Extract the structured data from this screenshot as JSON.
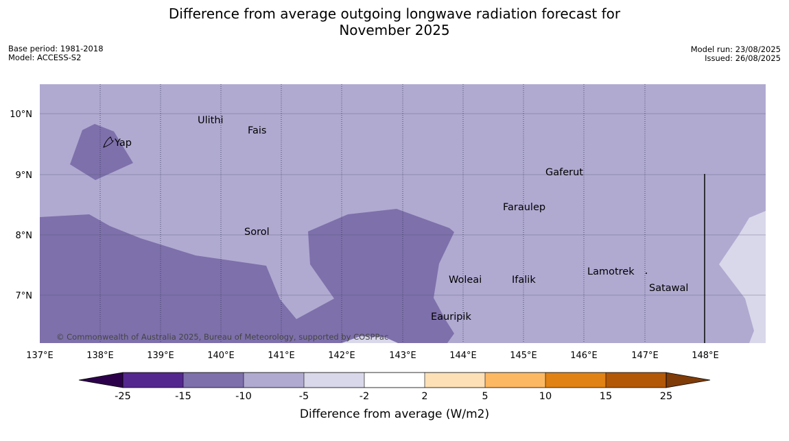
{
  "title_line1": "Difference from average outgoing longwave radiation forecast for",
  "title_line2": "November 2025",
  "meta_left": [
    "Base period: 1981-2018",
    "Model: ACCESS-S2"
  ],
  "meta_right": [
    "Model run: 23/08/2025",
    "Issued: 26/08/2025"
  ],
  "copyright": "© Commonwealth of Australia 2025, Bureau of Meteorology, supported by COSPPac",
  "lon_ticks": [
    "137°E",
    "138°E",
    "139°E",
    "140°E",
    "141°E",
    "142°E",
    "143°E",
    "144°E",
    "145°E",
    "146°E",
    "147°E",
    "148°E"
  ],
  "lat_ticks": [
    "10°N",
    "9°N",
    "8°N",
    "7°N"
  ],
  "places": [
    {
      "name": "Ulithi"
    },
    {
      "name": "Fais"
    },
    {
      "name": "Yap"
    },
    {
      "name": "Gaferut"
    },
    {
      "name": "Faraulep"
    },
    {
      "name": "Sorol"
    },
    {
      "name": "Lamotrek"
    },
    {
      "name": "Woleai"
    },
    {
      "name": "Ifalik"
    },
    {
      "name": "Satawal"
    },
    {
      "name": "Eauripik"
    }
  ],
  "colorbar": {
    "label": "Difference from average (W/m2)",
    "ticks": [
      "-25",
      "-15",
      "-10",
      "-5",
      "-2",
      "2",
      "5",
      "10",
      "15",
      "25"
    ],
    "colors": [
      "#54278f",
      "#7e70ab",
      "#b0aad1",
      "#d9d8ea",
      "#ffffff",
      "#fee0b6",
      "#fdb863",
      "#e08214",
      "#b35806"
    ],
    "under_color": "#2d004b",
    "over_color": "#7f3b08"
  },
  "map_colors": {
    "base": "#b0aad1",
    "dark": "#7e70ab",
    "light": "#d9d8ea"
  }
}
